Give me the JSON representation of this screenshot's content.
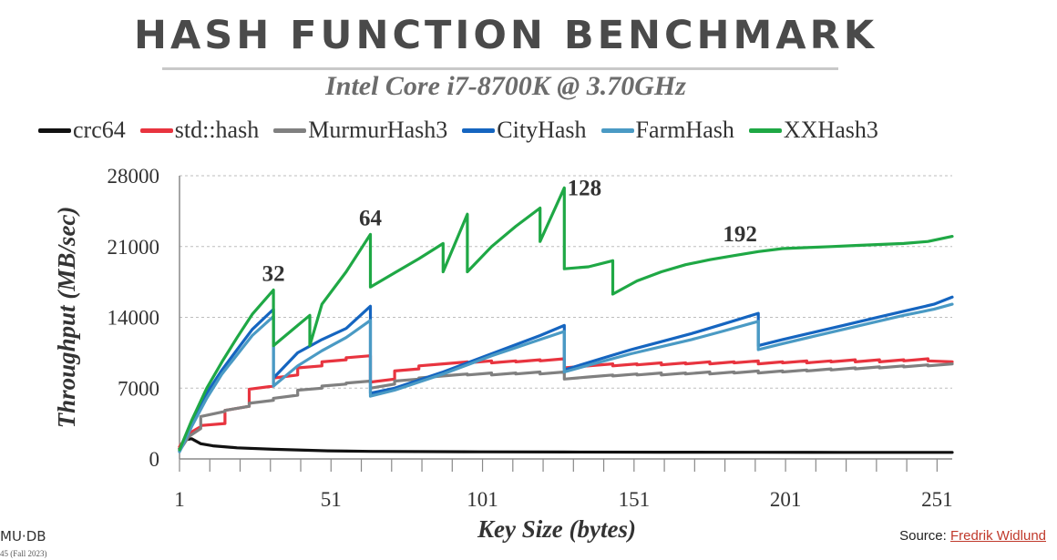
{
  "header": {
    "title": "HASH FUNCTION BENCHMARK",
    "subtitle": "Intel Core i7-8700K @ 3.70GHz"
  },
  "footer": {
    "logo": "MU·DB",
    "small": "45 (Fall 2023)",
    "source_label": "Source: ",
    "source_link": "Fredrik Widlund"
  },
  "colors": {
    "crc64": "#111111",
    "std_hash": "#e8343f",
    "murmur": "#808080",
    "city": "#1565c0",
    "farm": "#4a9ac4",
    "xx": "#1fa845"
  },
  "chart_data": {
    "type": "line",
    "title": "HASH FUNCTION BENCHMARK",
    "subtitle": "Intel Core i7-8700K @ 3.70GHz",
    "xlabel": "Key Size (bytes)",
    "ylabel": "Throughput (MB/sec)",
    "xlim": [
      1,
      256
    ],
    "ylim": [
      0,
      28000
    ],
    "xticks": [
      "1",
      "51",
      "101",
      "151",
      "201",
      "251"
    ],
    "yticks": [
      "0",
      "7000",
      "14000",
      "21000",
      "28000"
    ],
    "grid": "horizontal",
    "legend_position": "top",
    "annotations": [
      {
        "text": "32",
        "x": 32,
        "y": 16700
      },
      {
        "text": "64",
        "x": 64,
        "y": 22200
      },
      {
        "text": "128",
        "x": 128,
        "y": 26800
      },
      {
        "text": "192",
        "x": 192,
        "y": 21000
      }
    ],
    "series": [
      {
        "name": "crc64",
        "color_key": "crc64",
        "x": [
          1,
          3,
          5,
          8,
          12,
          20,
          32,
          50,
          64,
          100,
          128,
          160,
          192,
          220,
          256
        ],
        "y": [
          1000,
          1900,
          2000,
          1500,
          1300,
          1100,
          950,
          800,
          750,
          700,
          680,
          670,
          660,
          650,
          650
        ]
      },
      {
        "name": "std::hash",
        "color_key": "std_hash",
        "x": [
          1,
          4,
          8,
          8,
          16,
          16,
          24,
          24,
          32,
          32,
          40,
          40,
          48,
          48,
          56,
          56,
          64,
          64,
          72,
          72,
          80,
          80,
          88,
          88,
          96,
          96,
          104,
          104,
          112,
          112,
          120,
          120,
          128,
          128,
          136,
          136,
          144,
          144,
          152,
          152,
          160,
          160,
          168,
          168,
          176,
          176,
          184,
          184,
          192,
          192,
          200,
          200,
          208,
          208,
          216,
          216,
          224,
          224,
          232,
          232,
          240,
          240,
          248,
          248,
          256
        ],
        "y": [
          1200,
          2500,
          3200,
          3300,
          3500,
          4800,
          5200,
          6900,
          7200,
          8000,
          8300,
          9000,
          9200,
          9600,
          9800,
          10000,
          10200,
          7600,
          7900,
          8700,
          8900,
          9200,
          9400,
          9400,
          9600,
          9500,
          9700,
          9500,
          9700,
          9600,
          9800,
          9700,
          9900,
          9000,
          9200,
          9200,
          9400,
          9200,
          9400,
          9300,
          9500,
          9300,
          9500,
          9400,
          9600,
          9400,
          9600,
          9500,
          9700,
          9400,
          9600,
          9500,
          9700,
          9500,
          9700,
          9600,
          9800,
          9600,
          9800,
          9600,
          9800,
          9700,
          9900,
          9700,
          9600
        ]
      },
      {
        "name": "MurmurHash3",
        "color_key": "murmur",
        "x": [
          1,
          4,
          8,
          8,
          16,
          16,
          24,
          24,
          32,
          32,
          40,
          40,
          48,
          48,
          56,
          56,
          64,
          64,
          72,
          72,
          80,
          80,
          88,
          88,
          96,
          96,
          104,
          104,
          112,
          112,
          120,
          120,
          128,
          128,
          136,
          136,
          144,
          144,
          152,
          152,
          160,
          160,
          168,
          168,
          176,
          176,
          184,
          184,
          192,
          192,
          200,
          200,
          208,
          208,
          216,
          216,
          224,
          224,
          232,
          232,
          240,
          240,
          248,
          248,
          256
        ],
        "y": [
          800,
          2200,
          3000,
          4200,
          4700,
          4800,
          5200,
          5500,
          5800,
          6000,
          6300,
          6800,
          7000,
          7200,
          7400,
          7500,
          7700,
          7000,
          7400,
          7700,
          7900,
          8000,
          8200,
          8200,
          8400,
          8300,
          8500,
          8300,
          8500,
          8400,
          8600,
          8400,
          8600,
          7900,
          8100,
          8100,
          8300,
          8200,
          8400,
          8300,
          8500,
          8300,
          8500,
          8400,
          8600,
          8400,
          8600,
          8500,
          8700,
          8500,
          8700,
          8600,
          8800,
          8700,
          8900,
          8800,
          9000,
          8900,
          9100,
          9000,
          9200,
          9100,
          9300,
          9200,
          9400
        ]
      },
      {
        "name": "CityHash",
        "color_key": "city",
        "x": [
          1,
          5,
          10,
          15,
          20,
          25,
          32,
          32,
          40,
          48,
          56,
          64,
          64,
          72,
          80,
          88,
          96,
          104,
          112,
          120,
          128,
          128,
          140,
          150,
          160,
          170,
          180,
          192,
          192,
          200,
          210,
          220,
          230,
          240,
          250,
          256
        ],
        "y": [
          800,
          3500,
          6500,
          8800,
          10800,
          12800,
          14800,
          8000,
          10500,
          11800,
          12900,
          15100,
          6500,
          7000,
          7800,
          8600,
          9500,
          10400,
          11300,
          12200,
          13200,
          8800,
          9900,
          10800,
          11600,
          12400,
          13300,
          14400,
          11200,
          11800,
          12500,
          13200,
          13900,
          14600,
          15300,
          16000
        ]
      },
      {
        "name": "FarmHash",
        "color_key": "farm",
        "x": [
          1,
          5,
          10,
          15,
          20,
          25,
          32,
          32,
          40,
          48,
          56,
          64,
          64,
          72,
          80,
          88,
          96,
          104,
          112,
          120,
          128,
          128,
          140,
          150,
          160,
          170,
          180,
          192,
          192,
          200,
          210,
          220,
          230,
          240,
          250,
          256
        ],
        "y": [
          700,
          3200,
          6000,
          8400,
          10300,
          12200,
          14100,
          7200,
          9200,
          10700,
          12000,
          13700,
          6200,
          6800,
          7600,
          8400,
          9300,
          10200,
          11000,
          11800,
          12600,
          8600,
          9600,
          10400,
          11100,
          11800,
          12600,
          13600,
          10800,
          11400,
          12100,
          12800,
          13500,
          14200,
          14800,
          15300
        ]
      },
      {
        "name": "XXHash3",
        "color_key": "xx",
        "x": [
          1,
          5,
          10,
          15,
          20,
          25,
          32,
          32,
          40,
          44,
          44,
          48,
          56,
          64,
          64,
          72,
          80,
          88,
          88,
          96,
          96,
          104,
          112,
          120,
          120,
          128,
          128,
          136,
          144,
          144,
          152,
          160,
          168,
          176,
          184,
          192,
          200,
          208,
          216,
          224,
          232,
          240,
          248,
          256
        ],
        "y": [
          900,
          3800,
          7000,
          9600,
          12000,
          14300,
          16700,
          11200,
          13200,
          14200,
          11200,
          15300,
          18500,
          22200,
          17000,
          18400,
          19800,
          21300,
          18500,
          24200,
          18500,
          21000,
          23000,
          24800,
          21500,
          26800,
          18800,
          19000,
          19600,
          16300,
          17600,
          18500,
          19200,
          19700,
          20100,
          20500,
          20800,
          20900,
          21000,
          21100,
          21200,
          21300,
          21500,
          22000
        ]
      }
    ]
  }
}
